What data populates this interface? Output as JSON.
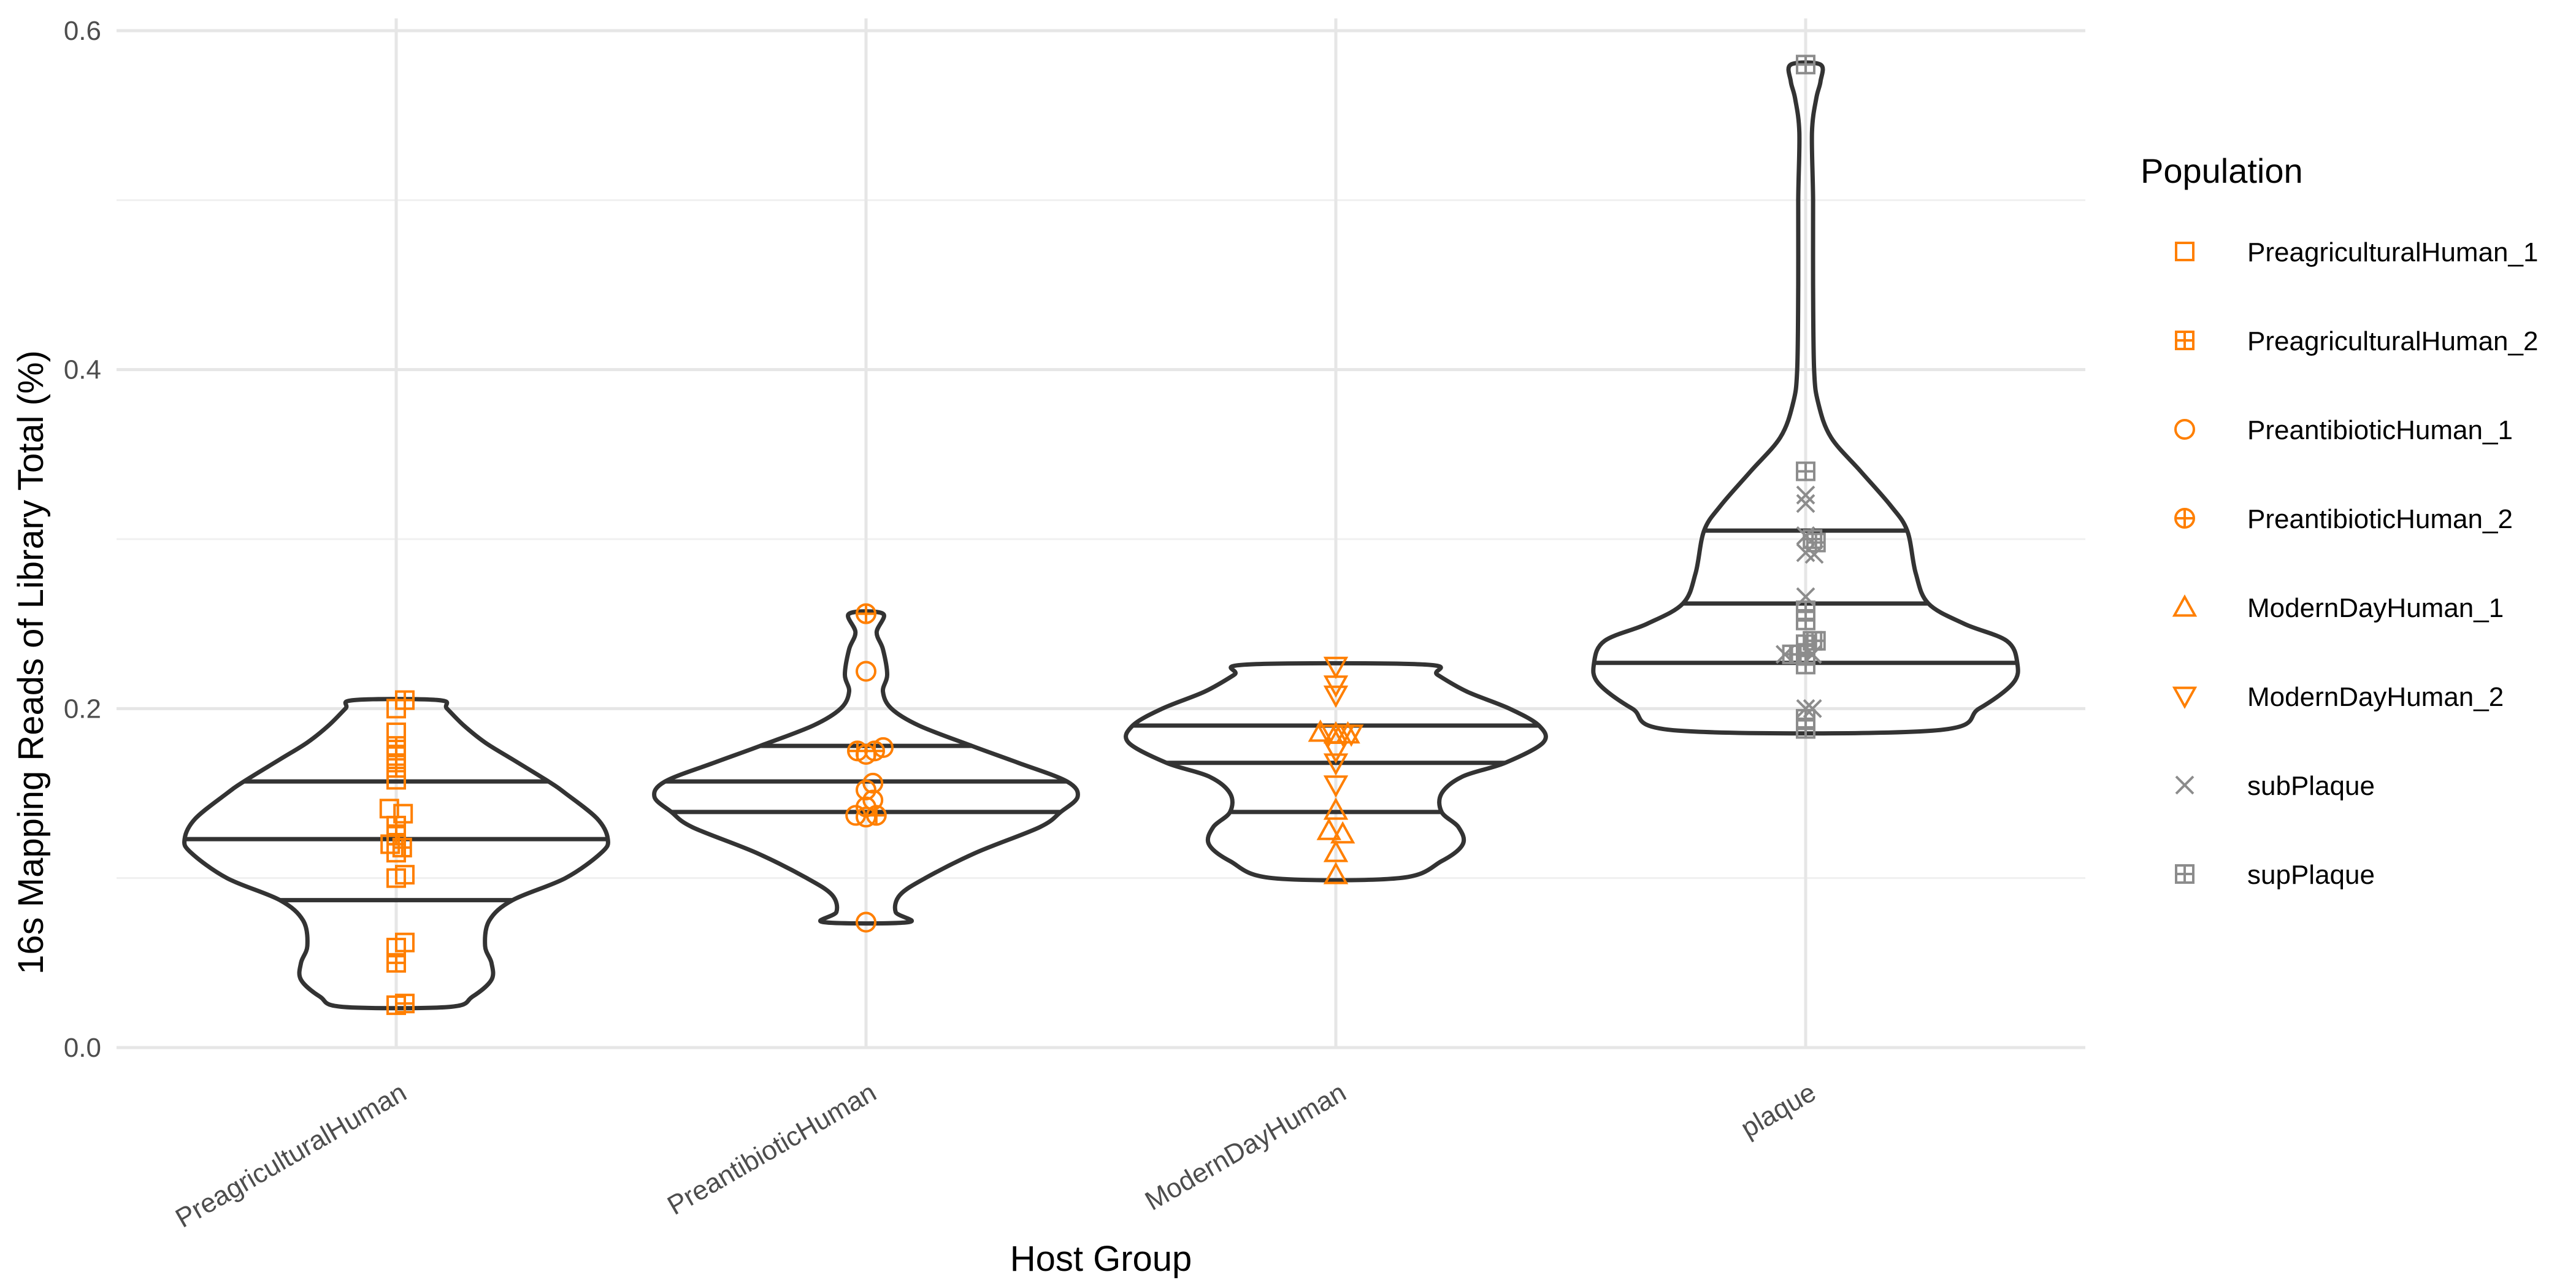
{
  "chart_data": {
    "type": "violin",
    "xlabel": "Host Group",
    "ylabel": "16s Mapping Reads of Library Total (%)",
    "ylim": [
      0,
      0.6
    ],
    "yticks": [
      0.0,
      0.2,
      0.4,
      0.6
    ],
    "ytick_labels": [
      "0.0",
      "0.2",
      "0.4",
      "0.6"
    ],
    "categories": [
      "PreagriculturalHuman",
      "PreantibioticHuman",
      "ModernDayHuman",
      "plaque"
    ],
    "grid": true,
    "legend": {
      "title": "Population",
      "placement": "right",
      "entries": [
        {
          "label": "PreagriculturalHuman_1",
          "shape": "square",
          "color": "#FF7F00"
        },
        {
          "label": "PreagriculturalHuman_2",
          "shape": "square-plus",
          "color": "#FF7F00"
        },
        {
          "label": "PreantibioticHuman_1",
          "shape": "circle",
          "color": "#FF7F00"
        },
        {
          "label": "PreantibioticHuman_2",
          "shape": "circle-plus",
          "color": "#FF7F00"
        },
        {
          "label": "ModernDayHuman_1",
          "shape": "triangle-up",
          "color": "#FF7F00"
        },
        {
          "label": "ModernDayHuman_2",
          "shape": "triangle-down",
          "color": "#FF7F00"
        },
        {
          "label": "subPlaque",
          "shape": "cross",
          "color": "#8C8C8C"
        },
        {
          "label": "supPlaque",
          "shape": "square-plus",
          "color": "#8C8C8C"
        }
      ]
    },
    "violins": [
      {
        "category": "PreagriculturalHuman",
        "range": [
          0.024,
          0.205
        ],
        "quantiles": [
          0.087,
          0.123,
          0.157
        ],
        "profile": [
          [
            0.024,
            0.25
          ],
          [
            0.03,
            0.36
          ],
          [
            0.04,
            0.45
          ],
          [
            0.05,
            0.45
          ],
          [
            0.06,
            0.42
          ],
          [
            0.075,
            0.44
          ],
          [
            0.087,
            0.55
          ],
          [
            0.1,
            0.8
          ],
          [
            0.115,
            0.97
          ],
          [
            0.123,
            1.0
          ],
          [
            0.135,
            0.95
          ],
          [
            0.15,
            0.8
          ],
          [
            0.157,
            0.72
          ],
          [
            0.17,
            0.55
          ],
          [
            0.18,
            0.42
          ],
          [
            0.19,
            0.32
          ],
          [
            0.2,
            0.24
          ],
          [
            0.205,
            0.2
          ]
        ]
      },
      {
        "category": "PreantibioticHuman",
        "range": [
          0.074,
          0.256
        ],
        "quantiles": [
          0.139,
          0.157,
          0.178
        ],
        "profile": [
          [
            0.074,
            0.2
          ],
          [
            0.08,
            0.14
          ],
          [
            0.09,
            0.16
          ],
          [
            0.1,
            0.28
          ],
          [
            0.115,
            0.52
          ],
          [
            0.13,
            0.82
          ],
          [
            0.139,
            0.92
          ],
          [
            0.148,
            1.0
          ],
          [
            0.157,
            0.95
          ],
          [
            0.168,
            0.72
          ],
          [
            0.178,
            0.5
          ],
          [
            0.19,
            0.25
          ],
          [
            0.2,
            0.12
          ],
          [
            0.21,
            0.08
          ],
          [
            0.22,
            0.1
          ],
          [
            0.235,
            0.08
          ],
          [
            0.245,
            0.05
          ],
          [
            0.256,
            0.08
          ]
        ]
      },
      {
        "category": "ModernDayHuman",
        "range": [
          0.1,
          0.226
        ],
        "quantiles": [
          0.139,
          0.168,
          0.19
        ],
        "profile": [
          [
            0.1,
            0.3
          ],
          [
            0.11,
            0.5
          ],
          [
            0.12,
            0.6
          ],
          [
            0.13,
            0.58
          ],
          [
            0.139,
            0.5
          ],
          [
            0.15,
            0.5
          ],
          [
            0.16,
            0.6
          ],
          [
            0.168,
            0.8
          ],
          [
            0.18,
            0.98
          ],
          [
            0.19,
            0.96
          ],
          [
            0.2,
            0.82
          ],
          [
            0.21,
            0.62
          ],
          [
            0.22,
            0.48
          ],
          [
            0.226,
            0.42
          ]
        ]
      },
      {
        "category": "plaque",
        "range": [
          0.187,
          0.58
        ],
        "quantiles": [
          0.227,
          0.262,
          0.305
        ],
        "profile": [
          [
            0.187,
            0.6
          ],
          [
            0.2,
            0.82
          ],
          [
            0.215,
            0.98
          ],
          [
            0.227,
            1.0
          ],
          [
            0.24,
            0.95
          ],
          [
            0.25,
            0.75
          ],
          [
            0.262,
            0.58
          ],
          [
            0.28,
            0.52
          ],
          [
            0.305,
            0.48
          ],
          [
            0.32,
            0.4
          ],
          [
            0.34,
            0.26
          ],
          [
            0.36,
            0.12
          ],
          [
            0.38,
            0.06
          ],
          [
            0.4,
            0.04
          ],
          [
            0.45,
            0.035
          ],
          [
            0.5,
            0.035
          ],
          [
            0.54,
            0.03
          ],
          [
            0.56,
            0.05
          ],
          [
            0.57,
            0.07
          ],
          [
            0.58,
            0.07
          ]
        ]
      }
    ],
    "points": [
      {
        "category": "PreagriculturalHuman",
        "population": "PreagriculturalHuman_2",
        "x": 0.5,
        "y": 0.205
      },
      {
        "category": "PreagriculturalHuman",
        "population": "PreagriculturalHuman_1",
        "x": 0.0,
        "y": 0.2
      },
      {
        "category": "PreagriculturalHuman",
        "population": "PreagriculturalHuman_1",
        "x": 0.0,
        "y": 0.186
      },
      {
        "category": "PreagriculturalHuman",
        "population": "PreagriculturalHuman_2",
        "x": 0.0,
        "y": 0.178
      },
      {
        "category": "PreagriculturalHuman",
        "population": "PreagriculturalHuman_2",
        "x": 0.0,
        "y": 0.172
      },
      {
        "category": "PreagriculturalHuman",
        "population": "PreagriculturalHuman_2",
        "x": 0.0,
        "y": 0.165
      },
      {
        "category": "PreagriculturalHuman",
        "population": "PreagriculturalHuman_1",
        "x": 0.0,
        "y": 0.158
      },
      {
        "category": "PreagriculturalHuman",
        "population": "PreagriculturalHuman_1",
        "x": -0.4,
        "y": 0.141
      },
      {
        "category": "PreagriculturalHuman",
        "population": "PreagriculturalHuman_1",
        "x": 0.4,
        "y": 0.138
      },
      {
        "category": "PreagriculturalHuman",
        "population": "PreagriculturalHuman_2",
        "x": 0.0,
        "y": 0.131
      },
      {
        "category": "PreagriculturalHuman",
        "population": "PreagriculturalHuman_2",
        "x": 0.0,
        "y": 0.125
      },
      {
        "category": "PreagriculturalHuman",
        "population": "PreagriculturalHuman_1",
        "x": -0.35,
        "y": 0.12
      },
      {
        "category": "PreagriculturalHuman",
        "population": "PreagriculturalHuman_2",
        "x": 0.35,
        "y": 0.118
      },
      {
        "category": "PreagriculturalHuman",
        "population": "PreagriculturalHuman_1",
        "x": 0.0,
        "y": 0.115
      },
      {
        "category": "PreagriculturalHuman",
        "population": "PreagriculturalHuman_1",
        "x": 0.5,
        "y": 0.102
      },
      {
        "category": "PreagriculturalHuman",
        "population": "PreagriculturalHuman_1",
        "x": 0.0,
        "y": 0.1
      },
      {
        "category": "PreagriculturalHuman",
        "population": "PreagriculturalHuman_1",
        "x": 0.5,
        "y": 0.062
      },
      {
        "category": "PreagriculturalHuman",
        "population": "PreagriculturalHuman_1",
        "x": 0.0,
        "y": 0.059
      },
      {
        "category": "PreagriculturalHuman",
        "population": "PreagriculturalHuman_2",
        "x": 0.0,
        "y": 0.05
      },
      {
        "category": "PreagriculturalHuman",
        "population": "PreagriculturalHuman_1",
        "x": 0.0,
        "y": 0.025
      },
      {
        "category": "PreagriculturalHuman",
        "population": "PreagriculturalHuman_2",
        "x": 0.5,
        "y": 0.026
      },
      {
        "category": "PreantibioticHuman",
        "population": "PreantibioticHuman_2",
        "x": 0.0,
        "y": 0.256
      },
      {
        "category": "PreantibioticHuman",
        "population": "PreantibioticHuman_1",
        "x": 0.0,
        "y": 0.222
      },
      {
        "category": "PreantibioticHuman",
        "population": "PreantibioticHuman_2",
        "x": -0.5,
        "y": 0.175
      },
      {
        "category": "PreantibioticHuman",
        "population": "PreantibioticHuman_1",
        "x": 0.0,
        "y": 0.173
      },
      {
        "category": "PreantibioticHuman",
        "population": "PreantibioticHuman_2",
        "x": 0.5,
        "y": 0.175
      },
      {
        "category": "PreantibioticHuman",
        "population": "PreantibioticHuman_1",
        "x": 1.0,
        "y": 0.177
      },
      {
        "category": "PreantibioticHuman",
        "population": "PreantibioticHuman_1",
        "x": 0.4,
        "y": 0.156
      },
      {
        "category": "PreantibioticHuman",
        "population": "PreantibioticHuman_1",
        "x": 0.0,
        "y": 0.152
      },
      {
        "category": "PreantibioticHuman",
        "population": "PreantibioticHuman_1",
        "x": 0.4,
        "y": 0.146
      },
      {
        "category": "PreantibioticHuman",
        "population": "PreantibioticHuman_1",
        "x": 0.0,
        "y": 0.142
      },
      {
        "category": "PreantibioticHuman",
        "population": "PreantibioticHuman_1",
        "x": -0.6,
        "y": 0.137
      },
      {
        "category": "PreantibioticHuman",
        "population": "PreantibioticHuman_1",
        "x": 0.0,
        "y": 0.136
      },
      {
        "category": "PreantibioticHuman",
        "population": "PreantibioticHuman_2",
        "x": 0.6,
        "y": 0.137
      },
      {
        "category": "PreantibioticHuman",
        "population": "PreantibioticHuman_1",
        "x": 0.0,
        "y": 0.074
      },
      {
        "category": "ModernDayHuman",
        "population": "ModernDayHuman_2",
        "x": 0.0,
        "y": 0.225
      },
      {
        "category": "ModernDayHuman",
        "population": "ModernDayHuman_2",
        "x": 0.0,
        "y": 0.214
      },
      {
        "category": "ModernDayHuman",
        "population": "ModernDayHuman_2",
        "x": 0.0,
        "y": 0.208
      },
      {
        "category": "ModernDayHuman",
        "population": "ModernDayHuman_1",
        "x": -0.9,
        "y": 0.186
      },
      {
        "category": "ModernDayHuman",
        "population": "ModernDayHuman_2",
        "x": -0.4,
        "y": 0.185
      },
      {
        "category": "ModernDayHuman",
        "population": "ModernDayHuman_1",
        "x": 0.0,
        "y": 0.185
      },
      {
        "category": "ModernDayHuman",
        "population": "ModernDayHuman_2",
        "x": 0.4,
        "y": 0.185
      },
      {
        "category": "ModernDayHuman",
        "population": "ModernDayHuman_1",
        "x": 0.7,
        "y": 0.185
      },
      {
        "category": "ModernDayHuman",
        "population": "ModernDayHuman_2",
        "x": 0.9,
        "y": 0.185
      },
      {
        "category": "ModernDayHuman",
        "population": "ModernDayHuman_2",
        "x": 0.0,
        "y": 0.175
      },
      {
        "category": "ModernDayHuman",
        "population": "ModernDayHuman_2",
        "x": 0.0,
        "y": 0.168
      },
      {
        "category": "ModernDayHuman",
        "population": "ModernDayHuman_2",
        "x": 0.0,
        "y": 0.155
      },
      {
        "category": "ModernDayHuman",
        "population": "ModernDayHuman_1",
        "x": 0.0,
        "y": 0.14
      },
      {
        "category": "ModernDayHuman",
        "population": "ModernDayHuman_1",
        "x": -0.4,
        "y": 0.128
      },
      {
        "category": "ModernDayHuman",
        "population": "ModernDayHuman_1",
        "x": 0.4,
        "y": 0.126
      },
      {
        "category": "ModernDayHuman",
        "population": "ModernDayHuman_1",
        "x": 0.0,
        "y": 0.115
      },
      {
        "category": "ModernDayHuman",
        "population": "ModernDayHuman_1",
        "x": 0.0,
        "y": 0.102
      },
      {
        "category": "plaque",
        "population": "supPlaque",
        "x": 0.0,
        "y": 0.58
      },
      {
        "category": "plaque",
        "population": "supPlaque",
        "x": 0.0,
        "y": 0.34
      },
      {
        "category": "plaque",
        "population": "subPlaque",
        "x": 0.0,
        "y": 0.326
      },
      {
        "category": "plaque",
        "population": "subPlaque",
        "x": 0.0,
        "y": 0.321
      },
      {
        "category": "plaque",
        "population": "subPlaque",
        "x": 0.0,
        "y": 0.302
      },
      {
        "category": "plaque",
        "population": "supPlaque",
        "x": 0.4,
        "y": 0.3
      },
      {
        "category": "plaque",
        "population": "supPlaque",
        "x": 0.6,
        "y": 0.298
      },
      {
        "category": "plaque",
        "population": "subPlaque",
        "x": 0.0,
        "y": 0.292
      },
      {
        "category": "plaque",
        "population": "subPlaque",
        "x": 0.5,
        "y": 0.291
      },
      {
        "category": "plaque",
        "population": "subPlaque",
        "x": 0.0,
        "y": 0.266
      },
      {
        "category": "plaque",
        "population": "supPlaque",
        "x": 0.0,
        "y": 0.258
      },
      {
        "category": "plaque",
        "population": "supPlaque",
        "x": 0.0,
        "y": 0.252
      },
      {
        "category": "plaque",
        "population": "supPlaque",
        "x": 0.4,
        "y": 0.24
      },
      {
        "category": "plaque",
        "population": "supPlaque",
        "x": 0.6,
        "y": 0.24
      },
      {
        "category": "plaque",
        "population": "supPlaque",
        "x": 0.0,
        "y": 0.238
      },
      {
        "category": "plaque",
        "population": "subPlaque",
        "x": -1.2,
        "y": 0.232
      },
      {
        "category": "plaque",
        "population": "supPlaque",
        "x": -0.8,
        "y": 0.232
      },
      {
        "category": "plaque",
        "population": "supPlaque",
        "x": -0.4,
        "y": 0.232
      },
      {
        "category": "plaque",
        "population": "supPlaque",
        "x": 0.0,
        "y": 0.232
      },
      {
        "category": "plaque",
        "population": "subPlaque",
        "x": 0.4,
        "y": 0.232
      },
      {
        "category": "plaque",
        "population": "supPlaque",
        "x": 0.0,
        "y": 0.226
      },
      {
        "category": "plaque",
        "population": "subPlaque",
        "x": 0.0,
        "y": 0.2
      },
      {
        "category": "plaque",
        "population": "subPlaque",
        "x": 0.4,
        "y": 0.2
      },
      {
        "category": "plaque",
        "population": "supPlaque",
        "x": 0.0,
        "y": 0.194
      },
      {
        "category": "plaque",
        "population": "supPlaque",
        "x": 0.0,
        "y": 0.188
      }
    ]
  }
}
